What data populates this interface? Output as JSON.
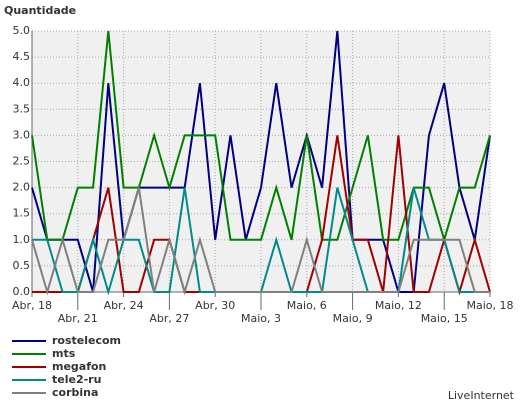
{
  "chart_data": {
    "type": "line",
    "title": "Quantidade",
    "footer": "LiveInternet",
    "categories": [
      "Abr, 18",
      null,
      null,
      "Abr, 21",
      null,
      null,
      "Abr, 24",
      null,
      null,
      "Abr, 27",
      null,
      null,
      "Abr, 30",
      null,
      null,
      "Maio, 3",
      null,
      null,
      "Maio, 6",
      null,
      null,
      "Maio, 9",
      null,
      null,
      "Maio, 12",
      null,
      null,
      "Maio, 15",
      null,
      null,
      "Maio, 18"
    ],
    "ylim": [
      0,
      5
    ],
    "yticks": [
      {
        "value": 0,
        "label": "0.0"
      },
      {
        "value": 0.5,
        "label": "0.5"
      },
      {
        "value": 1,
        "label": "1.0"
      },
      {
        "value": 1.5,
        "label": "1.5"
      },
      {
        "value": 2,
        "label": "2.0"
      },
      {
        "value": 2.5,
        "label": "2.5"
      },
      {
        "value": 3,
        "label": "3.0"
      },
      {
        "value": 3.5,
        "label": "3.5"
      },
      {
        "value": 4,
        "label": "4.0"
      },
      {
        "value": 4.5,
        "label": "4.5"
      },
      {
        "value": 5,
        "label": "5.0"
      }
    ],
    "grid": true,
    "series": [
      {
        "name": "rostelecom",
        "color": "#000080",
        "values": [
          2,
          1,
          1,
          1,
          0,
          4,
          1,
          2,
          2,
          2,
          2,
          4,
          1,
          3,
          1,
          2,
          4,
          2,
          3,
          2,
          5,
          1,
          1,
          1,
          0,
          0,
          3,
          4,
          2,
          1,
          3
        ]
      },
      {
        "name": "mts",
        "color": "#008000",
        "values": [
          3,
          1,
          1,
          2,
          2,
          5,
          2,
          2,
          3,
          2,
          3,
          3,
          3,
          1,
          1,
          1,
          2,
          1,
          3,
          1,
          1,
          2,
          3,
          1,
          1,
          2,
          2,
          1,
          2,
          2,
          3
        ]
      },
      {
        "name": "megafon",
        "color": "#a00000",
        "values": [
          0,
          0,
          0,
          0,
          1,
          2,
          0,
          0,
          1,
          1,
          0,
          0,
          0,
          0,
          0,
          0,
          0,
          0,
          0,
          1,
          3,
          1,
          1,
          0,
          3,
          0,
          0,
          1,
          0,
          1,
          0
        ]
      },
      {
        "name": "tele2-ru",
        "color": "#008b8b",
        "values": [
          1,
          1,
          0,
          0,
          1,
          0,
          1,
          1,
          0,
          0,
          2,
          0,
          0,
          0,
          0,
          0,
          1,
          0,
          0,
          0,
          2,
          1,
          0,
          0,
          0,
          2,
          1,
          1,
          0,
          0,
          0
        ]
      },
      {
        "name": "corbina",
        "color": "#808080",
        "values": [
          1,
          0,
          1,
          0,
          0,
          1,
          1,
          2,
          0,
          1,
          0,
          1,
          0,
          0,
          0,
          0,
          0,
          0,
          1,
          0,
          0,
          0,
          0,
          0,
          0,
          1,
          1,
          1,
          1,
          0,
          0
        ]
      }
    ]
  }
}
